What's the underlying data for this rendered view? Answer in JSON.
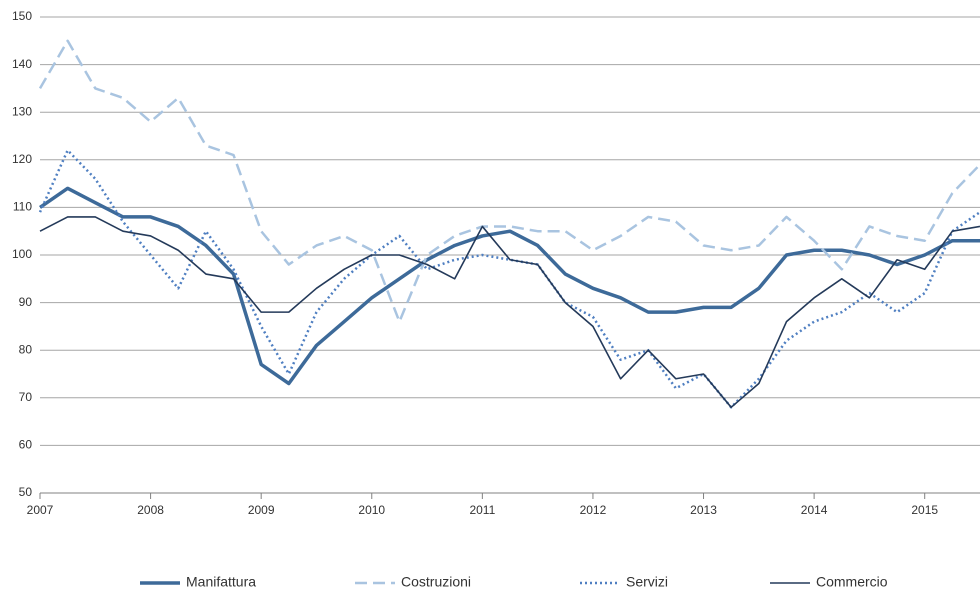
{
  "chart_data": {
    "type": "line",
    "x": [
      2007,
      2007.25,
      2007.5,
      2007.75,
      2008,
      2008.25,
      2008.5,
      2008.75,
      2009,
      2009.25,
      2009.5,
      2009.75,
      2010,
      2010.25,
      2010.5,
      2010.75,
      2011,
      2011.25,
      2011.5,
      2011.75,
      2012,
      2012.25,
      2012.5,
      2012.75,
      2013,
      2013.25,
      2013.5,
      2013.75,
      2014,
      2014.25,
      2014.5,
      2014.75,
      2015,
      2015.25,
      2015.5
    ],
    "series": [
      {
        "name": "Manifattura",
        "color": "#3d6a99",
        "width": 3.5,
        "dash": "solid",
        "values": [
          110,
          114,
          111,
          108,
          108,
          106,
          102,
          96,
          77,
          73,
          81,
          86,
          91,
          95,
          99,
          102,
          104,
          105,
          102,
          96,
          93,
          91,
          88,
          88,
          89,
          89,
          93,
          100,
          101,
          101,
          100,
          98,
          100,
          103,
          103
        ]
      },
      {
        "name": "Costruzioni",
        "color": "#a9c4e0",
        "width": 2.5,
        "dash": "dash",
        "values": [
          135,
          145,
          135,
          133,
          128,
          133,
          123,
          121,
          105,
          98,
          102,
          104,
          101,
          86,
          100,
          104,
          106,
          106,
          105,
          105,
          101,
          104,
          108,
          107,
          102,
          101,
          102,
          108,
          103,
          97,
          106,
          104,
          103,
          113,
          119
        ]
      },
      {
        "name": "Servizi",
        "color": "#4f7fc1",
        "width": 2.5,
        "dash": "dot",
        "values": [
          109,
          122,
          116,
          107,
          100,
          93,
          105,
          97,
          85,
          75,
          88,
          95,
          100,
          104,
          97,
          99,
          100,
          99,
          98,
          90,
          87,
          78,
          80,
          72,
          75,
          68,
          74,
          82,
          86,
          88,
          92,
          88,
          92,
          105,
          109
        ]
      },
      {
        "name": "Commercio",
        "color": "#243a5a",
        "width": 1.6,
        "dash": "solid",
        "values": [
          105,
          108,
          108,
          105,
          104,
          101,
          96,
          95,
          88,
          88,
          93,
          97,
          100,
          100,
          98,
          95,
          106,
          99,
          98,
          90,
          85,
          74,
          80,
          74,
          75,
          68,
          73,
          86,
          91,
          95,
          91,
          99,
          97,
          105,
          106
        ]
      }
    ],
    "xlim": [
      2007,
      2015.5
    ],
    "xticks": [
      2007,
      2008,
      2009,
      2010,
      2011,
      2012,
      2013,
      2014,
      2015
    ],
    "ylim": [
      50,
      150
    ],
    "yticks": [
      50,
      60,
      70,
      80,
      90,
      100,
      110,
      120,
      130,
      140,
      150
    ],
    "grid": true,
    "legend": "bottom"
  }
}
